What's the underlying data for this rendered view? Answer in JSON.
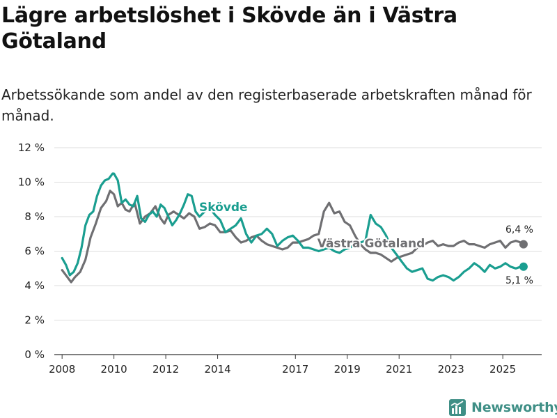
{
  "title": "Lägre arbetslöshet i Skövde än i Västra Götaland",
  "subtitle": "Arbetssökande som andel av den registerbaserade arbetskraften månad för månad.",
  "brand": {
    "name": "Newsworthy",
    "icon": "bar-chart-icon",
    "color": "#3f8f86"
  },
  "chart_data": {
    "type": "line",
    "title": "Lägre arbetslöshet i Skövde än i Västra Götaland",
    "xlabel": "",
    "ylabel": "",
    "xlim": [
      2007.7,
      2026.5
    ],
    "ylim": [
      0,
      12
    ],
    "grid": true,
    "y_ticks": [
      0,
      2,
      4,
      6,
      8,
      10,
      12
    ],
    "y_tick_labels": [
      "0 %",
      "2 %",
      "4 %",
      "6 %",
      "8 %",
      "10 %",
      "12 %"
    ],
    "x_ticks": [
      2008,
      2010,
      2012,
      2014,
      2017,
      2019,
      2021,
      2023,
      2025
    ],
    "x_tick_labels": [
      "2008",
      "2010",
      "2012",
      "2014",
      "2017",
      "2019",
      "2021",
      "2023",
      "2025"
    ],
    "series": [
      {
        "name": "Västra Götaland",
        "color": "#6f6f72",
        "end_label": "6,4 %",
        "x": [
          2008.0,
          2008.2,
          2008.35,
          2008.5,
          2008.7,
          2008.9,
          2009.1,
          2009.3,
          2009.5,
          2009.7,
          2009.85,
          2010.0,
          2010.15,
          2010.3,
          2010.45,
          2010.6,
          2010.8,
          2011.0,
          2011.2,
          2011.4,
          2011.6,
          2011.8,
          2011.95,
          2012.1,
          2012.3,
          2012.5,
          2012.7,
          2012.9,
          2013.1,
          2013.3,
          2013.5,
          2013.7,
          2013.9,
          2014.1,
          2014.3,
          2014.5,
          2014.7,
          2014.9,
          2015.1,
          2015.3,
          2015.5,
          2015.7,
          2015.9,
          2016.1,
          2016.3,
          2016.5,
          2016.7,
          2016.9,
          2017.1,
          2017.3,
          2017.5,
          2017.7,
          2017.9,
          2018.1,
          2018.3,
          2018.5,
          2018.7,
          2018.9,
          2019.1,
          2019.3,
          2019.5,
          2019.7,
          2019.9,
          2020.1,
          2020.3,
          2020.5,
          2020.7,
          2020.9,
          2021.1,
          2021.3,
          2021.5,
          2021.7,
          2021.9,
          2022.1,
          2022.3,
          2022.5,
          2022.7,
          2022.9,
          2023.1,
          2023.3,
          2023.5,
          2023.7,
          2023.9,
          2024.1,
          2024.3,
          2024.5,
          2024.7,
          2024.9,
          2025.1,
          2025.3,
          2025.5,
          2025.7,
          2025.8
        ],
        "values": [
          4.9,
          4.5,
          4.2,
          4.5,
          4.8,
          5.5,
          6.8,
          7.6,
          8.5,
          8.9,
          9.5,
          9.3,
          8.6,
          8.8,
          8.4,
          8.3,
          8.8,
          7.6,
          8.0,
          8.2,
          8.6,
          7.9,
          7.6,
          8.1,
          8.3,
          8.1,
          7.9,
          8.2,
          8.0,
          7.3,
          7.4,
          7.6,
          7.5,
          7.1,
          7.1,
          7.2,
          6.8,
          6.5,
          6.6,
          6.8,
          6.9,
          6.6,
          6.4,
          6.3,
          6.2,
          6.1,
          6.2,
          6.5,
          6.5,
          6.6,
          6.7,
          6.9,
          7.0,
          8.3,
          8.8,
          8.2,
          8.3,
          7.7,
          7.5,
          6.9,
          6.4,
          6.1,
          5.9,
          5.9,
          5.8,
          5.6,
          5.4,
          5.6,
          5.7,
          5.8,
          5.9,
          6.2,
          6.3,
          6.5,
          6.6,
          6.3,
          6.4,
          6.3,
          6.3,
          6.5,
          6.6,
          6.4,
          6.4,
          6.3,
          6.2,
          6.4,
          6.5,
          6.6,
          6.2,
          6.5,
          6.6,
          6.5,
          6.4
        ]
      },
      {
        "name": "Skövde",
        "color": "#1a9e90",
        "end_label": "5,1 %",
        "x": [
          2008.0,
          2008.15,
          2008.3,
          2008.45,
          2008.6,
          2008.75,
          2008.9,
          2009.05,
          2009.2,
          2009.35,
          2009.5,
          2009.65,
          2009.8,
          2009.95,
          2010.0,
          2010.15,
          2010.3,
          2010.45,
          2010.6,
          2010.75,
          2010.9,
          2011.05,
          2011.2,
          2011.35,
          2011.5,
          2011.65,
          2011.8,
          2011.95,
          2012.1,
          2012.25,
          2012.4,
          2012.55,
          2012.7,
          2012.85,
          2013.0,
          2013.15,
          2013.3,
          2013.5,
          2013.7,
          2013.9,
          2014.1,
          2014.3,
          2014.5,
          2014.7,
          2014.9,
          2015.1,
          2015.3,
          2015.5,
          2015.7,
          2015.9,
          2016.1,
          2016.3,
          2016.5,
          2016.7,
          2016.9,
          2017.1,
          2017.3,
          2017.5,
          2017.7,
          2017.9,
          2018.1,
          2018.3,
          2018.5,
          2018.7,
          2018.9,
          2019.1,
          2019.3,
          2019.5,
          2019.7,
          2019.9,
          2020.1,
          2020.3,
          2020.5,
          2020.7,
          2020.9,
          2021.1,
          2021.3,
          2021.5,
          2021.7,
          2021.9,
          2022.1,
          2022.3,
          2022.5,
          2022.7,
          2022.9,
          2023.1,
          2023.3,
          2023.5,
          2023.7,
          2023.9,
          2024.1,
          2024.3,
          2024.5,
          2024.7,
          2024.9,
          2025.1,
          2025.3,
          2025.5,
          2025.7,
          2025.8
        ],
        "values": [
          5.6,
          5.2,
          4.6,
          4.8,
          5.3,
          6.2,
          7.5,
          8.1,
          8.3,
          9.2,
          9.8,
          10.1,
          10.2,
          10.5,
          10.5,
          10.1,
          8.8,
          9.0,
          8.7,
          8.6,
          9.2,
          7.9,
          7.7,
          8.1,
          8.3,
          8.0,
          8.7,
          8.5,
          8.0,
          7.5,
          7.8,
          8.2,
          8.7,
          9.3,
          9.2,
          8.3,
          8.0,
          8.3,
          8.5,
          8.1,
          7.8,
          7.1,
          7.3,
          7.5,
          7.9,
          7.0,
          6.5,
          6.9,
          7.0,
          7.3,
          7.0,
          6.3,
          6.6,
          6.8,
          6.9,
          6.6,
          6.2,
          6.2,
          6.1,
          6.0,
          6.1,
          6.2,
          6.0,
          5.9,
          6.1,
          6.2,
          6.4,
          6.5,
          6.6,
          8.1,
          7.6,
          7.4,
          6.9,
          6.2,
          5.8,
          5.4,
          5.0,
          4.8,
          4.9,
          5.0,
          4.4,
          4.3,
          4.5,
          4.6,
          4.5,
          4.3,
          4.5,
          4.8,
          5.0,
          5.3,
          5.1,
          4.8,
          5.2,
          5.0,
          5.1,
          5.3,
          5.1,
          5.0,
          5.1,
          5.1
        ]
      }
    ],
    "annotations": [
      {
        "text": "Skövde",
        "series": "Skövde"
      },
      {
        "text": "Västra Götaland",
        "series": "Västra Götaland"
      }
    ]
  }
}
